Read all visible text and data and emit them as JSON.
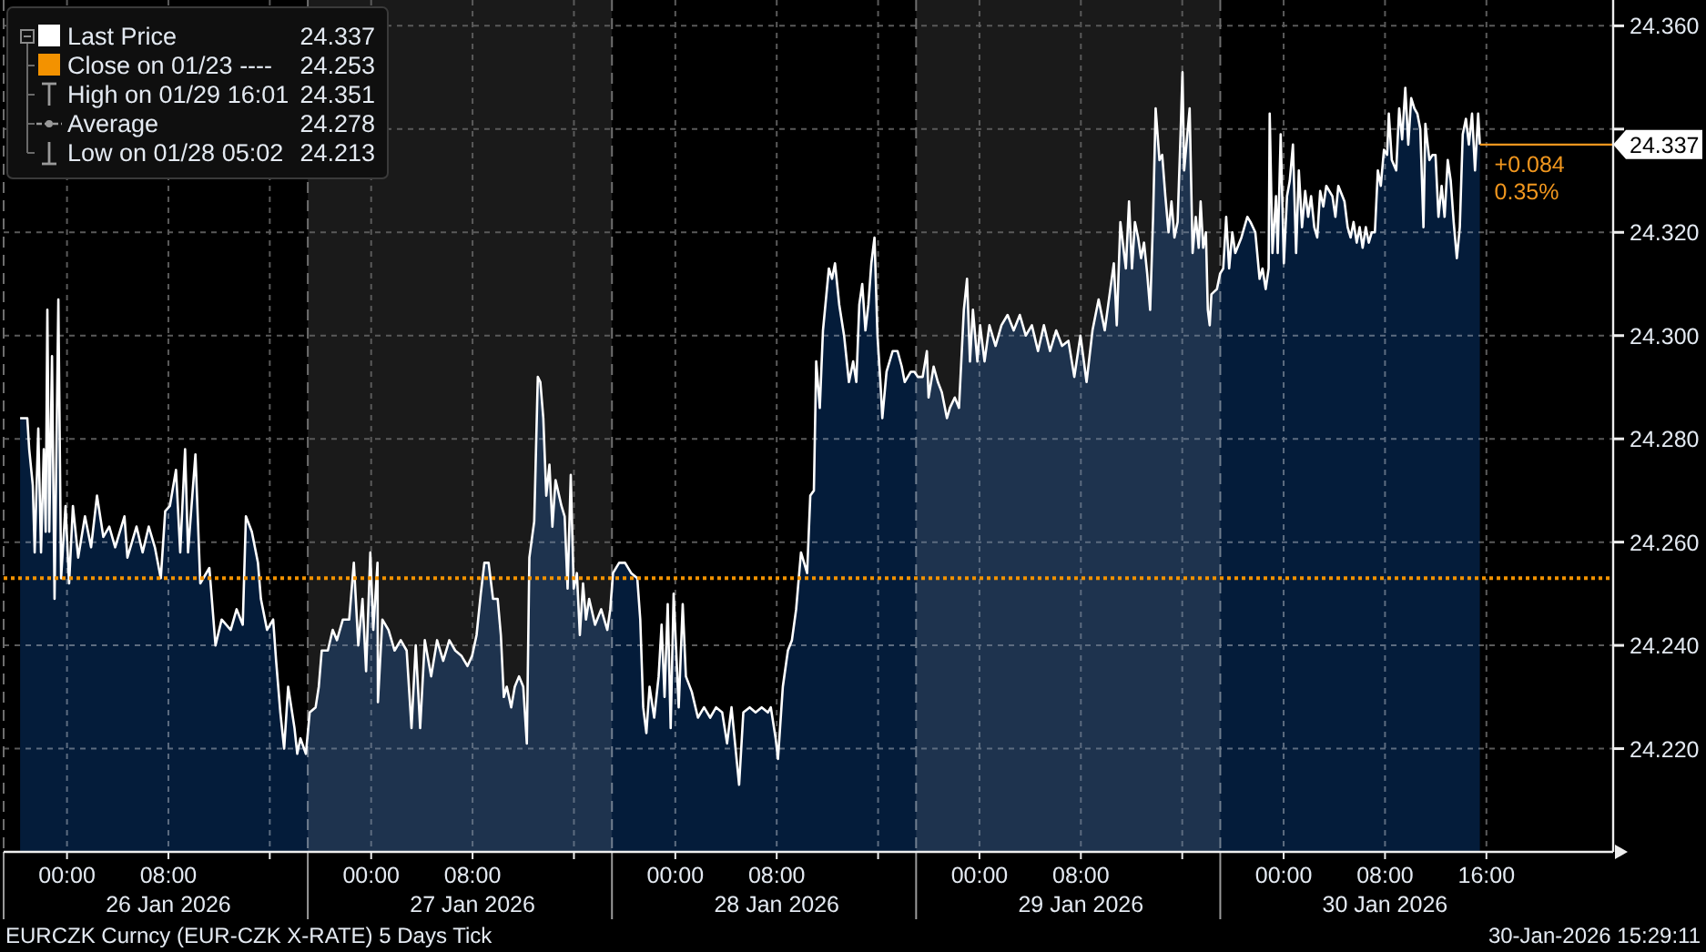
{
  "chart_data": {
    "type": "area",
    "title": "EURCZK Curncy (EUR-CZK X-RATE) 5 Days Tick",
    "x": [
      "2026-01-25T20:18",
      "2026-01-25T20:52",
      "2026-01-25T21:01",
      "2026-01-25T21:18",
      "2026-01-25T21:27",
      "2026-01-25T21:44",
      "2026-01-25T21:57",
      "2026-01-25T22:10",
      "2026-01-25T22:19",
      "2026-01-25T22:27",
      "2026-01-25T22:36",
      "2026-01-25T22:49",
      "2026-01-25T23:01",
      "2026-01-25T23:19",
      "2026-01-25T23:32",
      "2026-01-25T23:53",
      "2026-01-26T00:10",
      "2026-01-26T00:28",
      "2026-01-26T00:53",
      "2026-01-26T01:25",
      "2026-01-26T01:54",
      "2026-01-26T02:22",
      "2026-01-26T02:52",
      "2026-01-26T03:20",
      "2026-01-26T03:48",
      "2026-01-26T04:32",
      "2026-01-26T04:46",
      "2026-01-26T05:29",
      "2026-01-26T05:58",
      "2026-01-26T06:27",
      "2026-01-26T06:56",
      "2026-01-26T07:24",
      "2026-01-26T07:45",
      "2026-01-26T08:07",
      "2026-01-26T08:36",
      "2026-01-26T08:56",
      "2026-01-26T09:19",
      "2026-01-26T09:33",
      "2026-01-26T10:08",
      "2026-01-26T10:31",
      "2026-01-26T11:14",
      "2026-01-26T11:43",
      "2026-01-26T12:12",
      "2026-01-26T12:55",
      "2026-01-26T13:23",
      "2026-01-26T13:52",
      "2026-01-26T14:07",
      "2026-01-26T14:35",
      "2026-01-26T15:04",
      "2026-01-26T15:18",
      "2026-01-26T15:47",
      "2026-01-26T16:16",
      "2026-01-26T16:30",
      "2026-01-26T16:50",
      "2026-01-26T17:08",
      "2026-01-26T17:27",
      "2026-01-26T17:57",
      "2026-01-26T18:10",
      "2026-01-26T18:25",
      "2026-01-26T18:51",
      "2026-01-26T19:09",
      "2026-01-26T19:37",
      "2026-01-26T19:52",
      "2026-01-26T20:06",
      "2026-01-26T20:35",
      "2026-01-26T20:58",
      "2026-01-26T21:18",
      "2026-01-26T21:46",
      "2026-01-26T22:16",
      "2026-01-26T22:38",
      "2026-01-26T22:59",
      "2026-01-26T23:19",
      "2026-01-26T23:36",
      "2026-01-26T23:56",
      "2026-01-27T00:10",
      "2026-01-27T00:30",
      "2026-01-27T00:32",
      "2026-01-27T00:53",
      "2026-01-27T01:22",
      "2026-01-27T01:51",
      "2026-01-27T02:20",
      "2026-01-27T02:48",
      "2026-01-27T03:11",
      "2026-01-27T03:31",
      "2026-01-27T03:52",
      "2026-01-27T04:14",
      "2026-01-27T04:44",
      "2026-01-27T05:12",
      "2026-01-27T05:41",
      "2026-01-27T06:10",
      "2026-01-27T06:38",
      "2026-01-27T07:07",
      "2026-01-27T07:36",
      "2026-01-27T07:58",
      "2026-01-27T08:19",
      "2026-01-27T08:39",
      "2026-01-27T08:56",
      "2026-01-27T09:16",
      "2026-01-27T09:37",
      "2026-01-27T09:59",
      "2026-01-27T10:14",
      "2026-01-27T10:28",
      "2026-01-27T10:42",
      "2026-01-27T11:03",
      "2026-01-27T11:20",
      "2026-01-27T11:40",
      "2026-01-27T12:00",
      "2026-01-27T12:17",
      "2026-01-27T12:29",
      "2026-01-27T12:52",
      "2026-01-27T13:09",
      "2026-01-27T13:21",
      "2026-01-27T13:35",
      "2026-01-27T13:49",
      "2026-01-27T14:04",
      "2026-01-27T14:18",
      "2026-01-27T14:33",
      "2026-01-27T15:01",
      "2026-01-27T15:16",
      "2026-01-27T15:30",
      "2026-01-27T15:45",
      "2026-01-27T15:59",
      "2026-01-27T16:14",
      "2026-01-27T16:28",
      "2026-01-27T16:43",
      "2026-01-27T16:57",
      "2026-01-27T17:12",
      "2026-01-27T17:40",
      "2026-01-27T18:09",
      "2026-01-27T18:38",
      "2026-01-27T18:52",
      "2026-01-27T19:05",
      "2026-01-27T19:34",
      "2026-01-27T20:02",
      "2026-01-27T20:31",
      "2026-01-27T21:00",
      "2026-01-27T21:14",
      "2026-01-27T21:28",
      "2026-01-27T21:43",
      "2026-01-27T21:58",
      "2026-01-27T22:20",
      "2026-01-27T22:41",
      "2026-01-27T22:55",
      "2026-01-27T23:09",
      "2026-01-27T23:24",
      "2026-01-27T23:38",
      "2026-01-27T23:52",
      "2026-01-28T00:16",
      "2026-01-28T00:35",
      "2026-01-28T00:50",
      "2026-01-28T01:18",
      "2026-01-28T01:47",
      "2026-01-28T02:16",
      "2026-01-28T02:45",
      "2026-01-28T03:13",
      "2026-01-28T03:42",
      "2026-01-28T04:05",
      "2026-01-28T04:26",
      "2026-01-28T05:02",
      "2026-01-28T05:22",
      "2026-01-28T05:52",
      "2026-01-28T06:20",
      "2026-01-28T06:49",
      "2026-01-28T07:18",
      "2026-01-28T07:32",
      "2026-01-28T07:55",
      "2026-01-28T08:06",
      "2026-01-28T08:29",
      "2026-01-28T08:53",
      "2026-01-28T09:12",
      "2026-01-28T09:32",
      "2026-01-28T09:55",
      "2026-01-28T10:24",
      "2026-01-28T10:39",
      "2026-01-28T10:56",
      "2026-01-28T11:07",
      "2026-01-28T11:24",
      "2026-01-28T11:39",
      "2026-01-28T12:07",
      "2026-01-28T12:22",
      "2026-01-28T12:36",
      "2026-01-28T12:56",
      "2026-01-28T13:19",
      "2026-01-28T13:42",
      "2026-01-28T14:02",
      "2026-01-28T14:17",
      "2026-01-28T14:31",
      "2026-01-28T14:45",
      "2026-01-28T15:00",
      "2026-01-28T15:14",
      "2026-01-28T15:28",
      "2026-01-28T15:43",
      "2026-01-28T15:57",
      "2026-01-28T16:11",
      "2026-01-28T16:20",
      "2026-01-28T16:40",
      "2026-01-28T17:09",
      "2026-01-28T17:32",
      "2026-01-28T17:52",
      "2026-01-28T18:06",
      "2026-01-28T18:35",
      "2026-01-28T18:52",
      "2026-01-28T19:08",
      "2026-01-28T19:31",
      "2026-01-28T19:51",
      "2026-01-28T19:59",
      "2026-01-28T20:23",
      "2026-01-28T20:43",
      "2026-01-28T21:02",
      "2026-01-28T21:26",
      "2026-01-28T21:40",
      "2026-01-28T22:03",
      "2026-01-28T22:23",
      "2026-01-28T22:46",
      "2026-01-28T23:01",
      "2026-01-28T23:15",
      "2026-01-28T23:29",
      "2026-01-28T23:50",
      "2026-01-29T00:03",
      "2026-01-29T00:24",
      "2026-01-29T00:47",
      "2026-01-29T01:16",
      "2026-01-29T01:44",
      "2026-01-29T02:13",
      "2026-01-29T02:42",
      "2026-01-29T03:11",
      "2026-01-29T03:39",
      "2026-01-29T04:08",
      "2026-01-29T04:37",
      "2026-01-29T05:05",
      "2026-01-29T05:34",
      "2026-01-29T06:03",
      "2026-01-29T06:31",
      "2026-01-29T07:01",
      "2026-01-29T07:29",
      "2026-01-29T07:58",
      "2026-01-29T08:27",
      "2026-01-29T08:55",
      "2026-01-29T09:24",
      "2026-01-29T09:53",
      "2026-01-29T10:36",
      "2026-01-29T10:50",
      "2026-01-29T11:07",
      "2026-01-29T11:33",
      "2026-01-29T11:48",
      "2026-01-29T12:02",
      "2026-01-29T12:16",
      "2026-01-29T12:31",
      "2026-01-29T12:45",
      "2026-01-29T12:59",
      "2026-01-29T13:14",
      "2026-01-29T13:28",
      "2026-01-29T13:42",
      "2026-01-29T13:54",
      "2026-01-29T14:12",
      "2026-01-29T14:25",
      "2026-01-29T14:40",
      "2026-01-29T14:55",
      "2026-01-29T15:09",
      "2026-01-29T15:23",
      "2026-01-29T15:38",
      "2026-01-29T15:52",
      "2026-01-29T16:01",
      "2026-01-29T16:09",
      "2026-01-29T16:35",
      "2026-01-29T16:49",
      "2026-01-29T17:04",
      "2026-01-29T17:18",
      "2026-01-29T17:27",
      "2026-01-29T17:39",
      "2026-01-29T17:52",
      "2026-01-29T18:01",
      "2026-01-29T18:10",
      "2026-01-29T18:18",
      "2026-01-29T18:44",
      "2026-01-29T18:59",
      "2026-01-29T19:14",
      "2026-01-29T19:28",
      "2026-01-29T19:42",
      "2026-01-29T19:57",
      "2026-01-29T20:11",
      "2026-01-29T20:40",
      "2026-01-29T21:08",
      "2026-01-29T21:23",
      "2026-01-29T21:46",
      "2026-01-29T22:06",
      "2026-01-29T22:20",
      "2026-01-29T22:35",
      "2026-01-29T22:49",
      "2026-01-29T22:54",
      "2026-01-29T23:07",
      "2026-01-29T23:24",
      "2026-01-29T23:32",
      "2026-01-29T23:46",
      "2026-01-30T00:01",
      "2026-01-30T00:16",
      "2026-01-30T00:29",
      "2026-01-30T00:44",
      "2026-01-30T00:59",
      "2026-01-30T01:12",
      "2026-01-30T01:27",
      "2026-01-30T01:42",
      "2026-01-30T01:56",
      "2026-01-30T02:10",
      "2026-01-30T02:25",
      "2026-01-30T02:39",
      "2026-01-30T02:53",
      "2026-01-30T03:08",
      "2026-01-30T03:22",
      "2026-01-30T03:51",
      "2026-01-30T04:05",
      "2026-01-30T04:19",
      "2026-01-30T04:48",
      "2026-01-30T05:03",
      "2026-01-30T05:17",
      "2026-01-30T05:31",
      "2026-01-30T05:46",
      "2026-01-30T06:00",
      "2026-01-30T06:14",
      "2026-01-30T06:29",
      "2026-01-30T06:43",
      "2026-01-30T06:57",
      "2026-01-30T07:12",
      "2026-01-30T07:26",
      "2026-01-30T07:40",
      "2026-01-30T07:55",
      "2026-01-30T08:10",
      "2026-01-30T08:18",
      "2026-01-30T08:32",
      "2026-01-30T08:53",
      "2026-01-30T09:07",
      "2026-01-30T09:21",
      "2026-01-30T09:36",
      "2026-01-30T09:50",
      "2026-01-30T10:04",
      "2026-01-30T10:19",
      "2026-01-30T10:33",
      "2026-01-30T10:47",
      "2026-01-30T11:02",
      "2026-01-30T11:11",
      "2026-01-30T11:30",
      "2026-01-30T11:45",
      "2026-01-30T11:59",
      "2026-01-30T12:13",
      "2026-01-30T12:28",
      "2026-01-30T12:42",
      "2026-01-30T12:57",
      "2026-01-30T13:11",
      "2026-01-30T13:25",
      "2026-01-30T13:40",
      "2026-01-30T13:54",
      "2026-01-30T14:08",
      "2026-01-30T14:23",
      "2026-01-30T14:37",
      "2026-01-30T14:52",
      "2026-01-30T15:06",
      "2026-01-30T15:21",
      "2026-01-30T15:29"
    ],
    "series": [
      {
        "name": "Last Price",
        "color": "#ffffff",
        "values": [
          24.284,
          24.284,
          24.278,
          24.271,
          24.258,
          24.282,
          24.258,
          24.278,
          24.262,
          24.305,
          24.262,
          24.296,
          24.249,
          24.307,
          24.253,
          24.267,
          24.252,
          24.267,
          24.257,
          24.265,
          24.259,
          24.269,
          24.261,
          24.263,
          24.259,
          24.265,
          24.257,
          24.263,
          24.258,
          24.263,
          24.259,
          24.253,
          24.266,
          24.267,
          24.274,
          24.258,
          24.278,
          24.258,
          24.277,
          24.252,
          24.255,
          24.24,
          24.245,
          24.243,
          24.247,
          24.244,
          24.265,
          24.262,
          24.256,
          24.249,
          24.243,
          24.245,
          24.237,
          24.227,
          24.22,
          24.232,
          24.224,
          24.219,
          24.222,
          24.219,
          24.227,
          24.228,
          24.232,
          24.239,
          24.239,
          24.243,
          24.241,
          24.245,
          24.245,
          24.256,
          24.24,
          24.249,
          24.235,
          24.258,
          24.243,
          24.256,
          24.229,
          24.245,
          24.243,
          24.239,
          24.241,
          24.239,
          24.224,
          24.24,
          24.224,
          24.241,
          24.234,
          24.241,
          24.237,
          24.241,
          24.239,
          24.238,
          24.236,
          24.238,
          24.242,
          24.25,
          24.256,
          24.256,
          24.249,
          24.249,
          24.242,
          24.23,
          24.232,
          24.228,
          24.232,
          24.234,
          24.232,
          24.221,
          24.257,
          24.264,
          24.292,
          24.291,
          24.284,
          24.269,
          24.275,
          24.263,
          24.272,
          24.267,
          24.265,
          24.251,
          24.273,
          24.251,
          24.254,
          24.242,
          24.252,
          24.245,
          24.249,
          24.244,
          24.247,
          24.243,
          24.247,
          24.254,
          24.256,
          24.256,
          24.254,
          24.253,
          24.245,
          24.228,
          24.223,
          24.232,
          24.226,
          24.234,
          24.244,
          24.23,
          24.248,
          24.224,
          24.25,
          24.228,
          24.248,
          24.234,
          24.231,
          24.226,
          24.228,
          24.226,
          24.228,
          24.227,
          24.221,
          24.228,
          24.213,
          24.227,
          24.228,
          24.227,
          24.228,
          24.227,
          24.228,
          24.222,
          24.218,
          24.232,
          24.239,
          24.241,
          24.247,
          24.258,
          24.254,
          24.269,
          24.27,
          24.295,
          24.286,
          24.301,
          24.313,
          24.311,
          24.314,
          24.306,
          24.3,
          24.291,
          24.295,
          24.291,
          24.306,
          24.31,
          24.301,
          24.306,
          24.314,
          24.319,
          24.3,
          24.291,
          24.284,
          24.293,
          24.297,
          24.297,
          24.294,
          24.291,
          24.293,
          24.293,
          24.292,
          24.292,
          24.297,
          24.288,
          24.294,
          24.291,
          24.289,
          24.284,
          24.286,
          24.288,
          24.286,
          24.305,
          24.311,
          24.295,
          24.305,
          24.295,
          24.302,
          24.295,
          24.302,
          24.298,
          24.302,
          24.304,
          24.301,
          24.304,
          24.3,
          24.302,
          24.297,
          24.302,
          24.297,
          24.301,
          24.298,
          24.299,
          24.292,
          24.3,
          24.291,
          24.301,
          24.307,
          24.301,
          24.314,
          24.302,
          24.322,
          24.313,
          24.326,
          24.313,
          24.322,
          24.319,
          24.315,
          24.318,
          24.312,
          24.305,
          24.323,
          24.344,
          24.334,
          24.335,
          24.327,
          24.32,
          24.326,
          24.319,
          24.322,
          24.339,
          24.351,
          24.332,
          24.344,
          24.316,
          24.323,
          24.317,
          24.326,
          24.317,
          24.32,
          24.305,
          24.302,
          24.308,
          24.309,
          24.312,
          24.313,
          24.323,
          24.313,
          24.32,
          24.316,
          24.319,
          24.323,
          24.322,
          24.32,
          24.311,
          24.313,
          24.309,
          24.313,
          24.343,
          24.316,
          24.327,
          24.316,
          24.339,
          24.314,
          24.327,
          24.33,
          24.337,
          24.316,
          24.332,
          24.321,
          24.328,
          24.323,
          24.327,
          24.321,
          24.319,
          24.328,
          24.325,
          24.329,
          24.327,
          24.323,
          24.329,
          24.326,
          24.321,
          24.319,
          24.322,
          24.318,
          24.321,
          24.317,
          24.321,
          24.318,
          24.32,
          24.32,
          24.332,
          24.329,
          24.336,
          24.335,
          24.343,
          24.334,
          24.332,
          24.344,
          24.338,
          24.348,
          24.337,
          24.346,
          24.344,
          24.343,
          24.34,
          24.321,
          24.341,
          24.334,
          24.335,
          24.335,
          24.323,
          24.329,
          24.323,
          24.334,
          24.33,
          24.322,
          24.315,
          24.321,
          24.339,
          24.342,
          24.337,
          24.343,
          24.332,
          24.343,
          24.337
        ],
        "value_labels": [
          null,
          null,
          null,
          null,
          null,
          null,
          null,
          null,
          null,
          null,
          null,
          null,
          null,
          null,
          null,
          null,
          null,
          null,
          null,
          null,
          null,
          null,
          null,
          null,
          null,
          null,
          null,
          null,
          null,
          null,
          null,
          null,
          null,
          null,
          null,
          null,
          null,
          null,
          null,
          null,
          null,
          null,
          null,
          null,
          null,
          null,
          null,
          null,
          null,
          null,
          null,
          null,
          null,
          null,
          null,
          null,
          null,
          null,
          null,
          null,
          null,
          null,
          null,
          null,
          null,
          null,
          null,
          null,
          null,
          null,
          null,
          null,
          null,
          null,
          null,
          null,
          null,
          null,
          null,
          null,
          null,
          null,
          null,
          null,
          null,
          null,
          null,
          null,
          null,
          null,
          null,
          null,
          null,
          null,
          null,
          null,
          null,
          null,
          null,
          null,
          null,
          null,
          null,
          null,
          null,
          null,
          null,
          null,
          null,
          null,
          null,
          null,
          null,
          null,
          null,
          null,
          null,
          null,
          null,
          null,
          null,
          null,
          null,
          null,
          null,
          null,
          null,
          null,
          null,
          null,
          null,
          null,
          null,
          null,
          null,
          null,
          null,
          null,
          null,
          null,
          null,
          null,
          null,
          null,
          null,
          null,
          null,
          null,
          null,
          null,
          null,
          null,
          null,
          null,
          null,
          null,
          null,
          null,
          null,
          null,
          null,
          null,
          null,
          null,
          null,
          null,
          null,
          null,
          null,
          null,
          null,
          null,
          null,
          null,
          null,
          null,
          null,
          null,
          null,
          null,
          null,
          null,
          null,
          null,
          null,
          null,
          null,
          null,
          null,
          null,
          null,
          null,
          null,
          null,
          null,
          null,
          null,
          null,
          null,
          null,
          null,
          null,
          null,
          null,
          null,
          null,
          null,
          null,
          null,
          null,
          null,
          null,
          null,
          null,
          null,
          null,
          null,
          null,
          null,
          null,
          null,
          null,
          null,
          null,
          null,
          null,
          null,
          null,
          null,
          null,
          null,
          null,
          null,
          null,
          null,
          null,
          null,
          null,
          null,
          null,
          null,
          null,
          null,
          null,
          null,
          null,
          null,
          null,
          null,
          null,
          null,
          null,
          null,
          null,
          null,
          null,
          null,
          null,
          null,
          null,
          null,
          null,
          null,
          null,
          null,
          null,
          null,
          null,
          null,
          null,
          null,
          null,
          null,
          null,
          null,
          null,
          null,
          null,
          null,
          null,
          null,
          null,
          null,
          null,
          null,
          null,
          null,
          null,
          null,
          null,
          null,
          null,
          null,
          null,
          null,
          null,
          null,
          null,
          null,
          null,
          null,
          null,
          null,
          null,
          null,
          null,
          null,
          null,
          null,
          null,
          null,
          null,
          null,
          null,
          null,
          null,
          null,
          null,
          null,
          null,
          null,
          null,
          null,
          null,
          null,
          null,
          null,
          null,
          null,
          null,
          null,
          null,
          null,
          null,
          null,
          null,
          null,
          null,
          null,
          null,
          null,
          null,
          null,
          null,
          null,
          null,
          null,
          null,
          null,
          null,
          null,
          null,
          null,
          null,
          null,
          null,
          null,
          "24.337"
        ]
      }
    ],
    "xlim": [
      "2026-01-25T19:00",
      "2026-01-31T02:00"
    ],
    "xticks": [
      {
        "value": "2026-01-26T00:00",
        "label": "00:00"
      },
      {
        "value": "2026-01-26T08:00",
        "label": "08:00\n26 Jan 2026"
      },
      {
        "value": "2026-01-26T16:00",
        "label": null
      },
      {
        "value": "2026-01-27T00:00",
        "label": "00:00"
      },
      {
        "value": "2026-01-27T08:00",
        "label": "08:00\n27 Jan 2026"
      },
      {
        "value": "2026-01-27T16:00",
        "label": null
      },
      {
        "value": "2026-01-28T00:00",
        "label": "00:00"
      },
      {
        "value": "2026-01-28T08:00",
        "label": "08:00\n28 Jan 2026"
      },
      {
        "value": "2026-01-28T16:00",
        "label": null
      },
      {
        "value": "2026-01-29T00:00",
        "label": "00:00"
      },
      {
        "value": "2026-01-29T08:00",
        "label": "08:00\n29 Jan 2026"
      },
      {
        "value": "2026-01-29T16:00",
        "label": null
      },
      {
        "value": "2026-01-30T00:00",
        "label": "00:00"
      },
      {
        "value": "2026-01-30T08:00",
        "label": "08:00\n30 Jan 2026"
      },
      {
        "value": "2026-01-30T16:00",
        "label": "16:00"
      }
    ],
    "ylim": [
      24.2,
      24.365
    ],
    "yticks": [
      {
        "value": 24.22,
        "label": "24.220"
      },
      {
        "value": 24.24,
        "label": "24.240"
      },
      {
        "value": 24.26,
        "label": "24.260"
      },
      {
        "value": 24.28,
        "label": "24.280"
      },
      {
        "value": 24.3,
        "label": "24.300"
      },
      {
        "value": 24.32,
        "label": "24.320"
      },
      {
        "value": 24.34,
        "label": null
      },
      {
        "value": 24.36,
        "label": "24.360"
      }
    ],
    "grid": true,
    "legend": "top left",
    "bands": [
      {
        "axis": "x",
        "from": "2026-01-26T19:00",
        "to": "2026-01-27T19:00",
        "color": "#1a1a1a"
      },
      {
        "axis": "x",
        "from": "2026-01-28T19:00",
        "to": "2026-01-29T19:00",
        "color": "#1a1a1a"
      }
    ],
    "ref_lines": [
      {
        "axis": "y",
        "value": 24.253,
        "label": "Close on 01/23 ---- 24.253",
        "color": "#f39200",
        "line_style": "dotted"
      }
    ],
    "annotations": [
      "High on 01/29 16:01 24.351",
      "Average 24.278",
      "Low on 01/28 05:02 24.213",
      "30-Jan-2026 15:29:11",
      {
        "text": "+0.084",
        "x": "2026-01-30T15:29",
        "y": 24.337
      },
      {
        "text": "0.35%",
        "x": "2026-01-30T15:29",
        "y": 24.337
      }
    ]
  }
}
